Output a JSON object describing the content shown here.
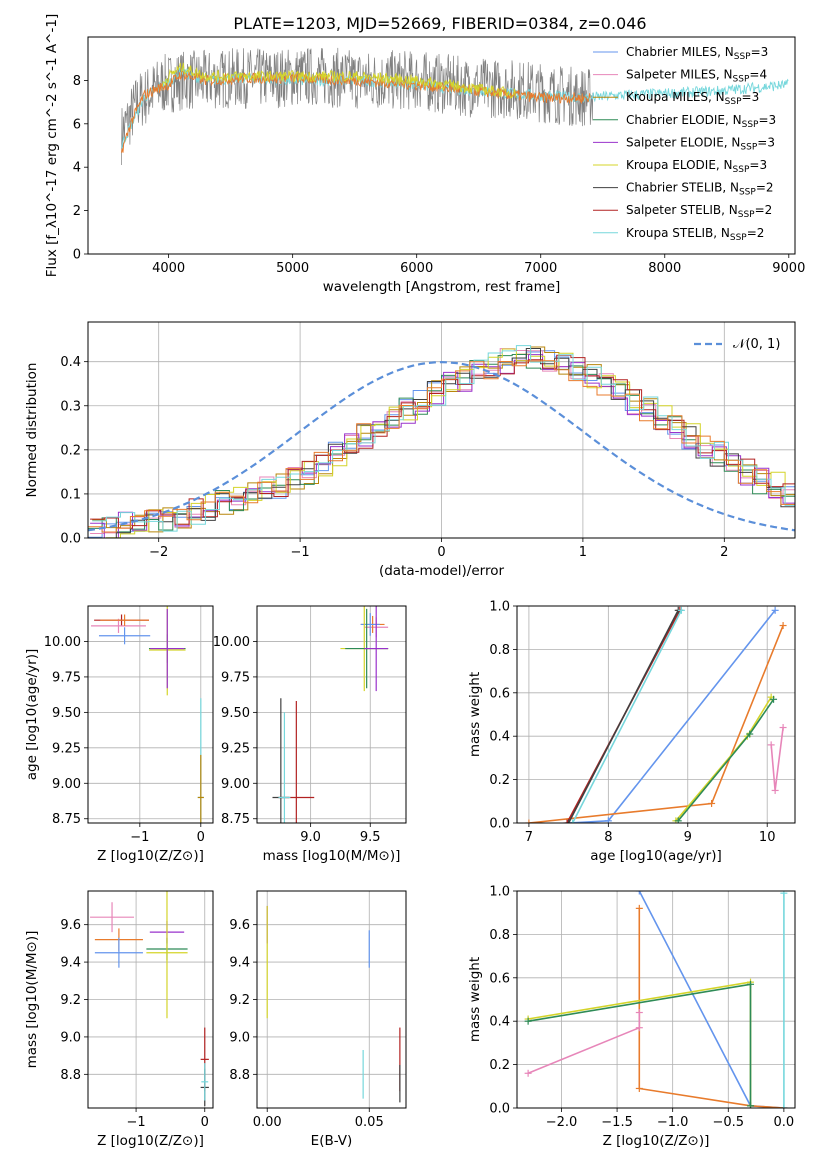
{
  "figure": {
    "title": "PLATE=1203, MJD=52669, FIBERID=0384, z=0.046"
  },
  "legend_entries": [
    {
      "label": "Chabrier MILES, N",
      "sub": "SSP",
      "tail": "=3",
      "color": "#6495ed"
    },
    {
      "label": "Salpeter MILES, N",
      "sub": "SSP",
      "tail": "=4",
      "color": "#e786b9"
    },
    {
      "label": "Kroupa MILES, N",
      "sub": "SSP",
      "tail": "=3",
      "color": "#b8860b"
    },
    {
      "label": "Chabrier ELODIE, N",
      "sub": "SSP",
      "tail": "=3",
      "color": "#2e8b57"
    },
    {
      "label": "Salpeter ELODIE, N",
      "sub": "SSP",
      "tail": "=3",
      "color": "#9932cc"
    },
    {
      "label": "Kroupa ELODIE, N",
      "sub": "SSP",
      "tail": "=3",
      "color": "#d4d42a"
    },
    {
      "label": "Chabrier STELIB, N",
      "sub": "SSP",
      "tail": "=2",
      "color": "#404040"
    },
    {
      "label": "Salpeter STELIB, N",
      "sub": "SSP",
      "tail": "=2",
      "color": "#b22222"
    },
    {
      "label": "Kroupa STELIB, N",
      "sub": "SSP",
      "tail": "=2",
      "color": "#76d7dc"
    }
  ],
  "chart_data": [
    {
      "id": "spectrum",
      "type": "line",
      "xlabel": "wavelength [Angstrom, rest frame]",
      "ylabel": "Flux [f_λ10^-17 erg cm^-2 s^-1 A^-1]",
      "xlim": [
        3350,
        9050
      ],
      "ylim": [
        0,
        10
      ],
      "xticks": [
        4000,
        5000,
        6000,
        7000,
        8000,
        9000
      ],
      "yticks": [
        0,
        2,
        4,
        6,
        8
      ],
      "grid": false,
      "legend_position": "right",
      "series": [
        {
          "style": "data",
          "color": "#808080",
          "x": [
            3620,
            3680,
            3750,
            3850,
            3950,
            4100,
            4300,
            4500,
            4800,
            5200,
            5600,
            6000,
            6400,
            6800,
            7200,
            7420
          ],
          "y": [
            5.5,
            6.2,
            7.0,
            7.4,
            7.8,
            8.0,
            8.0,
            8.1,
            8.1,
            8.2,
            8.0,
            8.0,
            7.7,
            7.6,
            7.3,
            7.2
          ]
        },
        {
          "style": "model",
          "color": "#76d7dc",
          "x": [
            3620,
            3700,
            3800,
            3900,
            4000,
            4100,
            4300,
            4600,
            5000,
            5500,
            6000,
            6500,
            7000,
            7400,
            7600,
            8000,
            8400,
            8800,
            9000
          ],
          "y": [
            5.0,
            6.0,
            7.2,
            7.6,
            7.9,
            8.4,
            8.0,
            8.1,
            8.0,
            8.0,
            7.8,
            7.5,
            7.3,
            7.2,
            7.3,
            7.4,
            7.5,
            7.7,
            7.8
          ]
        },
        {
          "style": "model",
          "color": "#e87b2c",
          "x": [
            3620,
            3700,
            3800,
            3900,
            4000,
            4100,
            4300,
            4600,
            5000,
            5500,
            6000,
            6500,
            7000,
            7400
          ],
          "y": [
            4.7,
            6.1,
            7.3,
            7.6,
            7.8,
            8.3,
            8.0,
            8.1,
            8.1,
            8.0,
            7.8,
            7.5,
            7.2,
            7.2
          ]
        },
        {
          "style": "model",
          "color": "#d4d42a",
          "x": [
            3950,
            4000,
            4100,
            4300,
            4600,
            5000,
            5500,
            6000,
            6500,
            6800
          ],
          "y": [
            7.8,
            8.2,
            8.6,
            8.2,
            8.2,
            8.2,
            8.2,
            8.0,
            7.6,
            7.4
          ]
        }
      ]
    },
    {
      "id": "residuals",
      "type": "histogram",
      "xlabel": "(data-model)/error",
      "ylabel": "Normed distribution",
      "xlim": [
        -2.5,
        2.5
      ],
      "ylim": [
        0,
        0.49
      ],
      "xticks": [
        -2,
        -1,
        0,
        1,
        2
      ],
      "yticks": [
        0.0,
        0.1,
        0.2,
        0.3,
        0.4
      ],
      "grid": true,
      "legend_position": "top-right",
      "reference_label": "𝒩(0, 1)",
      "bin_width": 0.1,
      "bin_start": -2.5,
      "base_values": [
        0.02,
        0.025,
        0.03,
        0.035,
        0.04,
        0.045,
        0.05,
        0.06,
        0.07,
        0.08,
        0.09,
        0.1,
        0.11,
        0.12,
        0.135,
        0.15,
        0.17,
        0.19,
        0.21,
        0.23,
        0.25,
        0.27,
        0.29,
        0.31,
        0.33,
        0.35,
        0.36,
        0.38,
        0.39,
        0.4,
        0.41,
        0.41,
        0.4,
        0.39,
        0.38,
        0.37,
        0.35,
        0.33,
        0.31,
        0.29,
        0.27,
        0.25,
        0.23,
        0.21,
        0.19,
        0.17,
        0.15,
        0.13,
        0.12,
        0.1,
        0.09,
        0.08,
        0.07,
        0.06,
        0.05,
        0.045,
        0.04,
        0.035,
        0.03,
        0.025
      ]
    },
    {
      "id": "age_vs_Z",
      "type": "errorbar",
      "xlabel": "Z [log10(Z/Z⊙)]",
      "ylabel": "age  [log10(age/yr)]",
      "xlim": [
        -1.85,
        0.2
      ],
      "ylim": [
        8.72,
        10.25
      ],
      "xticks": [
        -1,
        0
      ],
      "yticks": [
        8.75,
        9.0,
        9.25,
        9.5,
        9.75,
        10.0
      ],
      "grid": true,
      "points": [
        {
          "x": -1.3,
          "y": 10.15,
          "xerr": 0.45,
          "yerr": 0.04,
          "color": "#b22222"
        },
        {
          "x": -1.35,
          "y": 10.11,
          "xerr": 0.45,
          "yerr": 0.05,
          "color": "#e786b9"
        },
        {
          "x": -1.25,
          "y": 10.04,
          "xerr": 0.42,
          "yerr": 0.06,
          "color": "#6495ed"
        },
        {
          "x": -1.25,
          "y": 10.15,
          "xerr": 0.4,
          "yerr": 0.04,
          "color": "#e87b2c"
        },
        {
          "x": -0.55,
          "y": 9.95,
          "xerr": 0.3,
          "yerr": 0.1,
          "color": "#2e8b57"
        },
        {
          "x": -0.55,
          "y": 9.94,
          "xerr": 0.3,
          "yerr": 0.32,
          "color": "#d4d42a"
        },
        {
          "x": -0.55,
          "y": 9.95,
          "xerr": 0.28,
          "yerr": 0.28,
          "color": "#9932cc"
        },
        {
          "x": 0.0,
          "y": 8.9,
          "xerr": 0.05,
          "yerr": 0.7,
          "color": "#76d7dc"
        },
        {
          "x": 0.0,
          "y": 8.9,
          "xerr": 0.05,
          "yerr": 0.3,
          "color": "#b8860b"
        }
      ]
    },
    {
      "id": "age_vs_mass",
      "type": "errorbar",
      "xlabel": "mass [log10(M/M⊙)]",
      "ylabel": "",
      "xlim": [
        8.55,
        9.8
      ],
      "ylim": [
        8.72,
        10.25
      ],
      "xticks": [
        9.0,
        9.5
      ],
      "yticks": [
        8.75,
        9.0,
        9.25,
        9.5,
        9.75,
        10.0
      ],
      "grid": true,
      "points": [
        {
          "x": 9.55,
          "y": 10.1,
          "xerr": 0.1,
          "yerr": 0.07,
          "color": "#e786b9"
        },
        {
          "x": 9.52,
          "y": 10.12,
          "xerr": 0.1,
          "yerr": 0.06,
          "color": "#e87b2c"
        },
        {
          "x": 9.5,
          "y": 10.12,
          "xerr": 0.08,
          "yerr": 0.08,
          "color": "#6495ed"
        },
        {
          "x": 9.45,
          "y": 9.95,
          "xerr": 0.2,
          "yerr": 0.3,
          "color": "#d4d42a"
        },
        {
          "x": 9.47,
          "y": 9.95,
          "xerr": 0.18,
          "yerr": 0.28,
          "color": "#2e8b57"
        },
        {
          "x": 9.55,
          "y": 9.95,
          "xerr": 0.1,
          "yerr": 0.3,
          "color": "#9932cc"
        },
        {
          "x": 8.88,
          "y": 8.9,
          "xerr": 0.15,
          "yerr": 0.68,
          "color": "#b22222"
        },
        {
          "x": 8.75,
          "y": 8.9,
          "xerr": 0.07,
          "yerr": 0.7,
          "color": "#404040"
        },
        {
          "x": 8.78,
          "y": 8.9,
          "xerr": 0.05,
          "yerr": 0.6,
          "color": "#76d7dc"
        }
      ]
    },
    {
      "id": "mass_weight_vs_age",
      "type": "line",
      "xlabel": "age  [log10(age/yr)]",
      "ylabel": "mass weight",
      "xlim": [
        6.85,
        10.35
      ],
      "ylim": [
        0,
        1.0
      ],
      "xticks": [
        7,
        8,
        9,
        10
      ],
      "yticks": [
        0.0,
        0.2,
        0.4,
        0.6,
        0.8,
        1.0
      ],
      "grid": true,
      "series": [
        {
          "color": "#6495ed",
          "x": [
            7.5,
            8.0,
            10.1
          ],
          "y": [
            0.0,
            0.01,
            0.98
          ]
        },
        {
          "color": "#e87b2c",
          "x": [
            7.0,
            9.3,
            10.2
          ],
          "y": [
            0.0,
            0.09,
            0.91
          ]
        },
        {
          "color": "#e786b9",
          "x": [
            10.05,
            10.1,
            10.2
          ],
          "y": [
            0.36,
            0.15,
            0.44
          ]
        },
        {
          "color": "#d4d42a",
          "x": [
            8.85,
            9.75,
            10.05
          ],
          "y": [
            0.01,
            0.4,
            0.58
          ]
        },
        {
          "color": "#2e8b57",
          "x": [
            8.88,
            9.78,
            10.08
          ],
          "y": [
            0.01,
            0.41,
            0.57
          ]
        },
        {
          "color": "#b22222",
          "x": [
            7.48,
            8.9
          ],
          "y": [
            0.0,
            0.98
          ]
        },
        {
          "color": "#404040",
          "x": [
            7.5,
            8.88
          ],
          "y": [
            0.0,
            0.98
          ]
        },
        {
          "color": "#76d7dc",
          "x": [
            7.55,
            8.92
          ],
          "y": [
            0.0,
            0.98
          ]
        }
      ]
    },
    {
      "id": "mass_vs_Z",
      "type": "errorbar",
      "xlabel": "Z [log10(Z/Z⊙)]",
      "ylabel": "mass [log10(M/M⊙)]",
      "xlim": [
        -1.7,
        0.12
      ],
      "ylim": [
        8.62,
        9.78
      ],
      "xticks": [
        -1,
        0
      ],
      "yticks": [
        8.8,
        9.0,
        9.2,
        9.4,
        9.6
      ],
      "grid": true,
      "points": [
        {
          "x": -1.35,
          "y": 9.64,
          "xerr": 0.32,
          "yerr": 0.08,
          "color": "#e786b9"
        },
        {
          "x": -1.25,
          "y": 9.52,
          "xerr": 0.35,
          "yerr": 0.06,
          "color": "#e87b2c"
        },
        {
          "x": -1.25,
          "y": 9.45,
          "xerr": 0.35,
          "yerr": 0.08,
          "color": "#6495ed"
        },
        {
          "x": -0.55,
          "y": 9.56,
          "xerr": 0.25,
          "yerr": 0.06,
          "color": "#9932cc"
        },
        {
          "x": -0.55,
          "y": 9.47,
          "xerr": 0.3,
          "yerr": 0.06,
          "color": "#2e8b57"
        },
        {
          "x": -0.55,
          "y": 9.45,
          "xerr": 0.3,
          "yerr": 0.35,
          "color": "#d4d42a"
        },
        {
          "x": 0.0,
          "y": 8.88,
          "xerr": 0.06,
          "yerr": 0.17,
          "color": "#b22222"
        },
        {
          "x": 0.0,
          "y": 8.73,
          "xerr": 0.06,
          "yerr": 0.1,
          "color": "#404040"
        },
        {
          "x": 0.0,
          "y": 8.76,
          "xerr": 0.05,
          "yerr": 0.1,
          "color": "#76d7dc"
        }
      ]
    },
    {
      "id": "mass_vs_ebv",
      "type": "errorbar",
      "xlabel": "E(B-V)",
      "ylabel": "",
      "xlim": [
        -0.005,
        0.068
      ],
      "ylim": [
        8.62,
        9.78
      ],
      "xticks": [
        0.0,
        0.05
      ],
      "yticks": [
        8.8,
        9.0,
        9.2,
        9.4,
        9.6
      ],
      "grid": true,
      "points": [
        {
          "x": 0.0,
          "y": 9.6,
          "xerr": 0.0,
          "yerr": 0.1,
          "color": "#9932cc"
        },
        {
          "x": 0.0,
          "y": 9.4,
          "xerr": 0.0,
          "yerr": 0.3,
          "color": "#d4d42a"
        },
        {
          "x": 0.05,
          "y": 9.47,
          "xerr": 0.0,
          "yerr": 0.1,
          "color": "#6495ed"
        },
        {
          "x": 0.047,
          "y": 8.8,
          "xerr": 0.0,
          "yerr": 0.13,
          "color": "#76d7dc"
        },
        {
          "x": 0.065,
          "y": 8.88,
          "xerr": 0.0,
          "yerr": 0.17,
          "color": "#b22222"
        },
        {
          "x": 0.065,
          "y": 8.75,
          "xerr": 0.0,
          "yerr": 0.1,
          "color": "#404040"
        }
      ]
    },
    {
      "id": "mass_weight_vs_Z",
      "type": "line",
      "xlabel": "Z [log10(Z/Z⊙)]",
      "ylabel": "mass weight",
      "xlim": [
        -2.4,
        0.1
      ],
      "ylim": [
        0,
        1.0
      ],
      "xticks": [
        -2.0,
        -1.5,
        -1.0,
        -0.5,
        0.0
      ],
      "yticks": [
        0.0,
        0.2,
        0.4,
        0.6,
        0.8,
        1.0
      ],
      "grid": true,
      "series": [
        {
          "color": "#6495ed",
          "x": [
            -1.3,
            -0.3,
            0.0
          ],
          "y": [
            1.0,
            0.01,
            0.0
          ]
        },
        {
          "color": "#e87b2c",
          "x": [
            -1.3,
            -1.3,
            -0.3,
            0.0
          ],
          "y": [
            0.92,
            0.09,
            0.01,
            0.0
          ]
        },
        {
          "color": "#e786b9",
          "x": [
            -2.3,
            -1.3,
            -1.3
          ],
          "y": [
            0.16,
            0.37,
            0.44
          ]
        },
        {
          "color": "#d4d42a",
          "x": [
            -2.3,
            -0.3,
            -0.3
          ],
          "y": [
            0.41,
            0.58,
            0.01
          ]
        },
        {
          "color": "#2e8b57",
          "x": [
            -2.3,
            -0.3,
            -0.3
          ],
          "y": [
            0.4,
            0.57,
            0.01
          ]
        },
        {
          "color": "#76d7dc",
          "x": [
            0.0,
            0.0
          ],
          "y": [
            0.0,
            0.99
          ]
        }
      ]
    }
  ]
}
